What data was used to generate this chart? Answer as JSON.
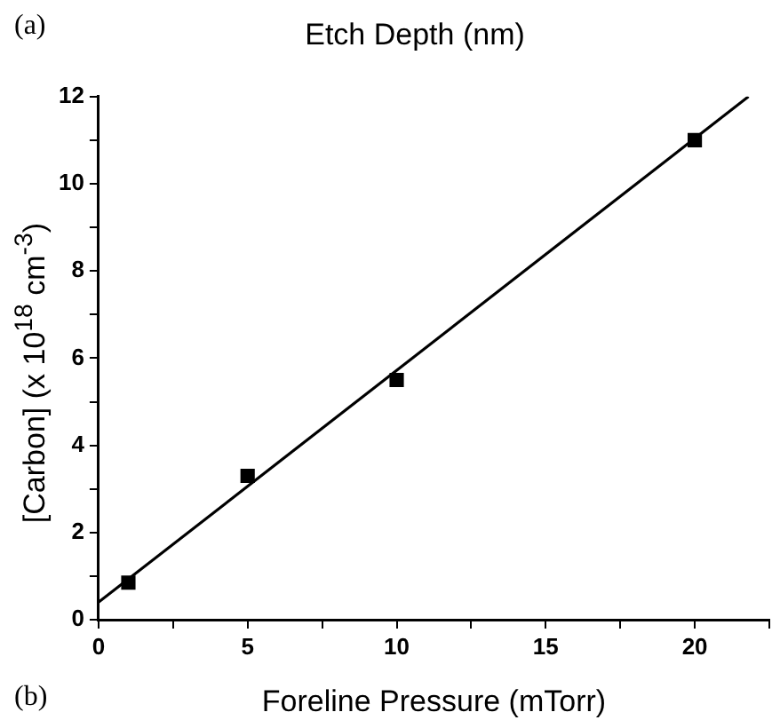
{
  "chart_data": {
    "type": "scatter",
    "title": "Etch Depth (nm)",
    "xlabel": "Foreline Pressure (mTorr)",
    "ylabel": "[Carbon] (x 10$^{18}$ cm$^{-3}$)",
    "annotations": [
      "(a)",
      "(b)"
    ],
    "xlim": [
      0,
      22.5
    ],
    "xticks": [
      0,
      {
        "value": 2.5,
        "label": null
      },
      5,
      {
        "value": 7.5,
        "label": null
      },
      10,
      {
        "value": 12.5,
        "label": null
      },
      15,
      {
        "value": 17.5,
        "label": null
      },
      20,
      {
        "value": 22.5,
        "label": null
      }
    ],
    "ylim": [
      0,
      12
    ],
    "yticks": [
      0,
      {
        "value": 1,
        "label": null
      },
      2,
      {
        "value": 3,
        "label": null
      },
      4,
      {
        "value": 5,
        "label": null
      },
      6,
      {
        "value": 7,
        "label": null
      },
      8,
      {
        "value": 9,
        "label": null
      },
      10,
      {
        "value": 11,
        "label": null
      },
      12
    ],
    "series": [
      {
        "x": [
          1,
          5,
          10,
          20
        ],
        "values": [
          0.85,
          3.3,
          5.5,
          11
        ],
        "color": "#000000",
        "marker": "square"
      },
      {
        "type": "line",
        "x": [
          0,
          21.8
        ],
        "values": [
          0.4,
          12
        ],
        "color": "#000000",
        "marker": "none",
        "line_style": "solid"
      }
    ]
  }
}
